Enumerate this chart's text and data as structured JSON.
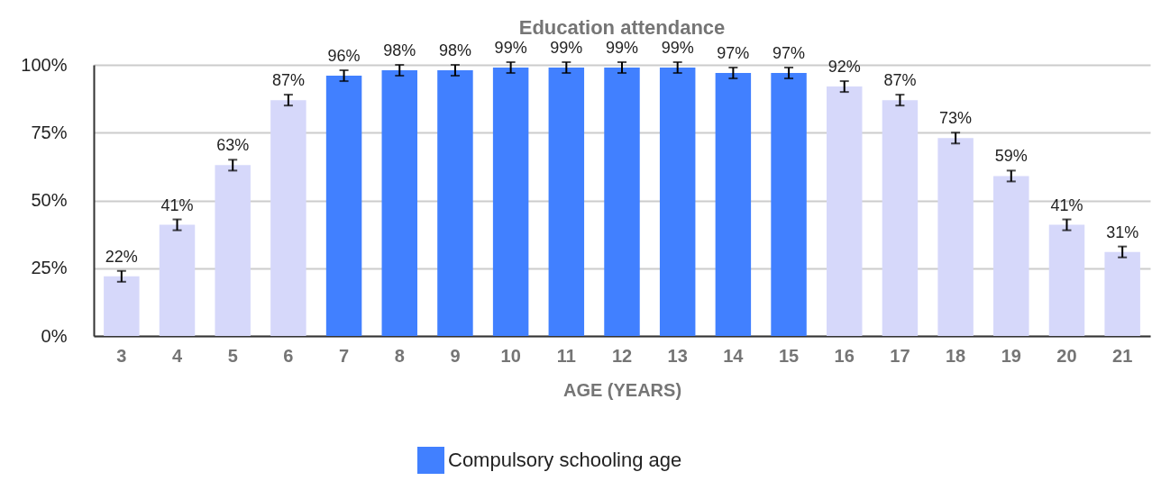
{
  "chart_data": {
    "type": "bar",
    "title": "Education attendance",
    "xlabel": "AGE (YEARS)",
    "categories": [
      "3",
      "4",
      "5",
      "6",
      "7",
      "8",
      "9",
      "10",
      "11",
      "12",
      "13",
      "14",
      "15",
      "16",
      "17",
      "18",
      "19",
      "20",
      "21"
    ],
    "series": [
      {
        "name": "Compulsory schooling age",
        "color": "#4180ff",
        "values": [
          null,
          null,
          null,
          null,
          96,
          98,
          98,
          99,
          99,
          99,
          99,
          97,
          97,
          null,
          null,
          null,
          null,
          null,
          null
        ],
        "errors": [
          null,
          null,
          null,
          null,
          2,
          2,
          2,
          2,
          2,
          2,
          2,
          2,
          2,
          null,
          null,
          null,
          null,
          null,
          null
        ],
        "value_labels": [
          null,
          null,
          null,
          null,
          "96%",
          "98%",
          "98%",
          "99%",
          "99%",
          "99%",
          "99%",
          "97%",
          "97%",
          null,
          null,
          null,
          null,
          null,
          null
        ]
      },
      {
        "color": "#d6d8fa",
        "values": [
          22,
          41,
          63,
          87,
          null,
          null,
          null,
          null,
          null,
          null,
          null,
          null,
          null,
          92,
          87,
          73,
          59,
          41,
          31
        ],
        "errors": [
          2,
          2,
          2,
          2,
          null,
          null,
          null,
          null,
          null,
          null,
          null,
          null,
          null,
          2,
          2,
          2,
          2,
          2,
          2
        ],
        "value_labels": [
          "22%",
          "41%",
          "63%",
          "87%",
          null,
          null,
          null,
          null,
          null,
          null,
          null,
          null,
          null,
          "92%",
          "87%",
          "73%",
          "59%",
          "41%",
          "31%"
        ]
      }
    ],
    "ylim": [
      0,
      100
    ],
    "yticks": [
      {
        "value": 0,
        "label": "0%"
      },
      {
        "value": 25,
        "label": "25%"
      },
      {
        "value": 50,
        "label": "50%"
      },
      {
        "value": 75,
        "label": "75%"
      },
      {
        "value": 100,
        "label": "100%"
      }
    ],
    "grid": "y",
    "legend": "bottom"
  }
}
